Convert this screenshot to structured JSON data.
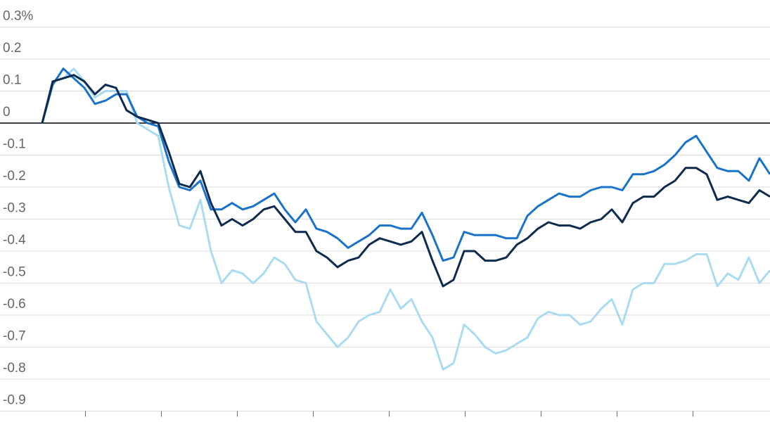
{
  "chart_data": {
    "type": "line",
    "x": [
      0,
      1,
      2,
      3,
      4,
      5,
      6,
      7,
      8,
      9,
      10,
      11,
      12,
      13,
      14,
      15,
      16,
      17,
      18,
      19,
      20,
      21,
      22,
      23,
      24,
      25,
      26,
      27,
      28,
      29,
      30,
      31,
      32,
      33,
      34,
      35,
      36,
      37,
      38,
      39,
      40,
      41,
      42,
      43,
      44,
      45,
      46,
      47,
      48,
      49,
      50,
      51,
      52,
      53,
      54,
      55,
      56,
      57,
      58,
      59,
      60,
      61,
      62,
      63,
      64,
      65,
      66,
      67,
      68,
      69
    ],
    "xlim": [
      0,
      69
    ],
    "xticks": [
      4.1,
      11.3,
      18.5,
      25.7,
      32.9,
      40.1,
      47.3,
      54.5,
      61.7
    ],
    "ylim": [
      -0.9,
      0.3
    ],
    "yticks": [
      {
        "value": 0.3,
        "label": "0.3%"
      },
      0.2,
      0.1,
      0,
      -0.1,
      -0.2,
      -0.3,
      -0.4,
      -0.5,
      -0.6,
      -0.7,
      -0.8,
      -0.9
    ],
    "grid": true,
    "series": [
      {
        "color": "#a9dcf0",
        "values": [
          0,
          0.13,
          0.14,
          0.17,
          0.13,
          0.08,
          0.1,
          0.1,
          0.1,
          0.0,
          -0.02,
          -0.04,
          -0.2,
          -0.32,
          -0.33,
          -0.24,
          -0.4,
          -0.5,
          -0.46,
          -0.47,
          -0.5,
          -0.47,
          -0.42,
          -0.44,
          -0.49,
          -0.5,
          -0.62,
          -0.66,
          -0.7,
          -0.67,
          -0.62,
          -0.6,
          -0.59,
          -0.52,
          -0.58,
          -0.55,
          -0.62,
          -0.67,
          -0.77,
          -0.75,
          -0.63,
          -0.66,
          -0.7,
          -0.72,
          -0.71,
          -0.69,
          -0.67,
          -0.61,
          -0.59,
          -0.6,
          -0.6,
          -0.63,
          -0.62,
          -0.58,
          -0.55,
          -0.63,
          -0.52,
          -0.5,
          -0.5,
          -0.44,
          -0.44,
          -0.43,
          -0.41,
          -0.41,
          -0.51,
          -0.47,
          -0.49,
          -0.42,
          -0.5,
          -0.46
        ]
      },
      {
        "color": "#1a73c9",
        "values": [
          0,
          0.12,
          0.17,
          0.14,
          0.11,
          0.06,
          0.07,
          0.09,
          0.09,
          0.02,
          0.0,
          -0.01,
          -0.12,
          -0.2,
          -0.21,
          -0.18,
          -0.27,
          -0.27,
          -0.25,
          -0.27,
          -0.26,
          -0.24,
          -0.22,
          -0.27,
          -0.31,
          -0.27,
          -0.33,
          -0.34,
          -0.36,
          -0.39,
          -0.37,
          -0.35,
          -0.32,
          -0.32,
          -0.33,
          -0.33,
          -0.28,
          -0.35,
          -0.43,
          -0.42,
          -0.34,
          -0.35,
          -0.35,
          -0.35,
          -0.36,
          -0.36,
          -0.29,
          -0.26,
          -0.24,
          -0.22,
          -0.23,
          -0.23,
          -0.21,
          -0.2,
          -0.2,
          -0.21,
          -0.16,
          -0.16,
          -0.15,
          -0.13,
          -0.1,
          -0.06,
          -0.04,
          -0.09,
          -0.14,
          -0.15,
          -0.15,
          -0.18,
          -0.11,
          -0.16
        ]
      },
      {
        "color": "#0d2a4f",
        "values": [
          0,
          0.13,
          0.14,
          0.15,
          0.13,
          0.09,
          0.12,
          0.11,
          0.04,
          0.02,
          0.01,
          0.0,
          -0.09,
          -0.19,
          -0.2,
          -0.15,
          -0.25,
          -0.32,
          -0.3,
          -0.32,
          -0.3,
          -0.27,
          -0.26,
          -0.3,
          -0.34,
          -0.34,
          -0.4,
          -0.42,
          -0.45,
          -0.43,
          -0.42,
          -0.38,
          -0.36,
          -0.37,
          -0.38,
          -0.37,
          -0.34,
          -0.43,
          -0.51,
          -0.49,
          -0.4,
          -0.4,
          -0.43,
          -0.43,
          -0.42,
          -0.38,
          -0.36,
          -0.33,
          -0.31,
          -0.32,
          -0.32,
          -0.33,
          -0.31,
          -0.3,
          -0.27,
          -0.31,
          -0.25,
          -0.23,
          -0.23,
          -0.2,
          -0.18,
          -0.14,
          -0.14,
          -0.16,
          -0.24,
          -0.23,
          -0.24,
          -0.25,
          -0.21,
          -0.23
        ]
      }
    ]
  }
}
